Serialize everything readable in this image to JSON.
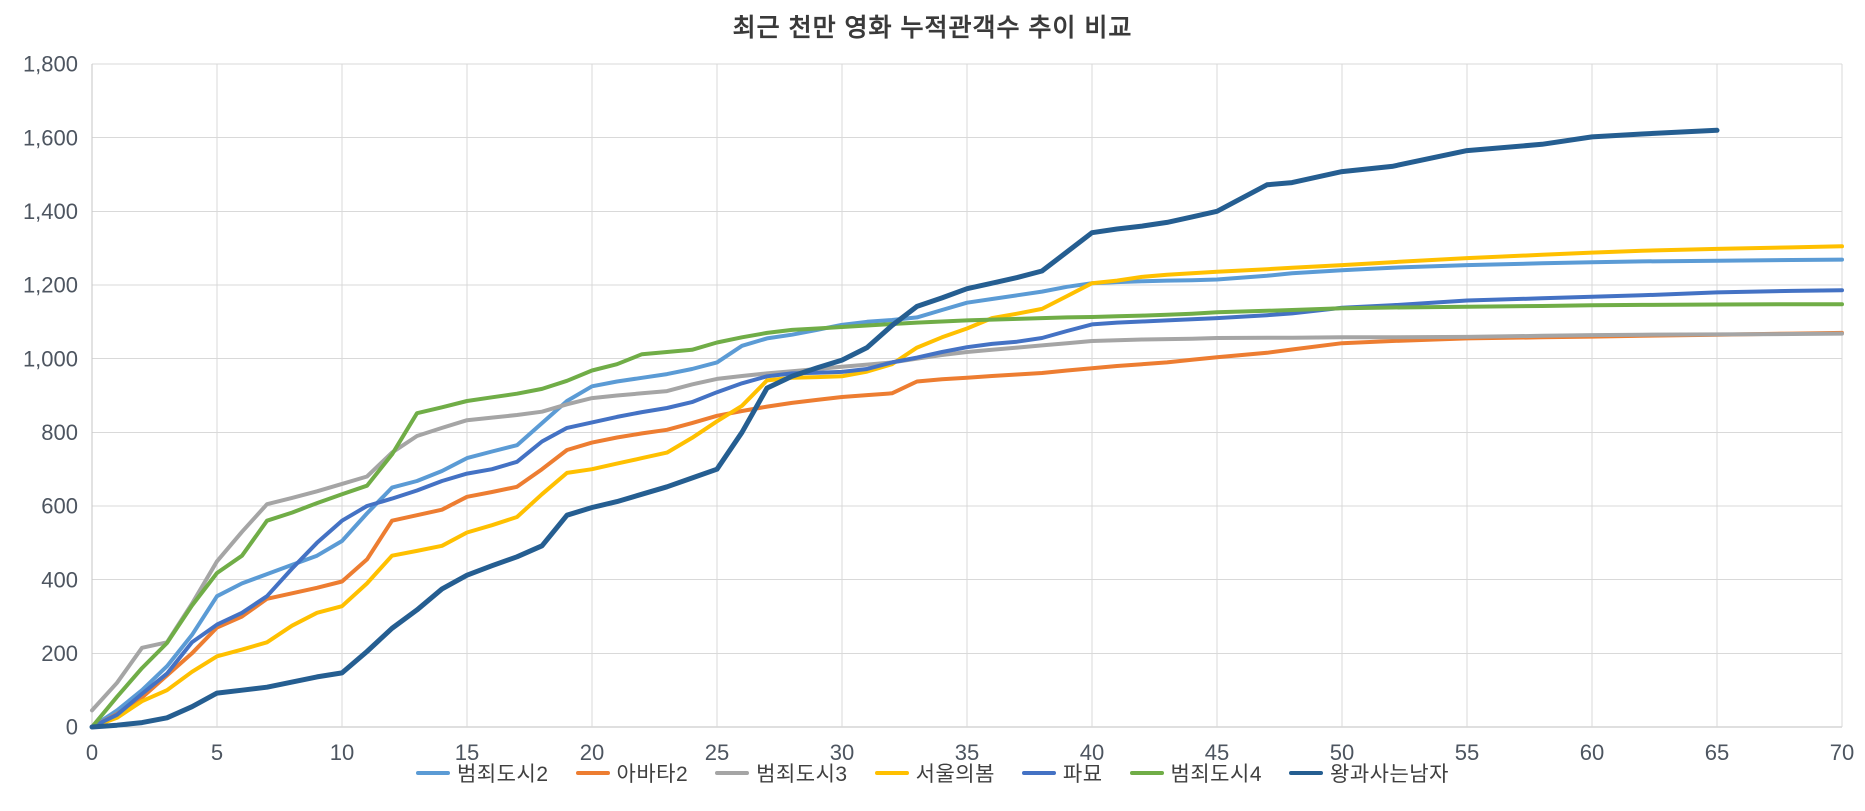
{
  "chart_data": {
    "type": "line",
    "title": "최근 천만 영화 누적관객수 추이 비교",
    "xlabel": "",
    "ylabel": "",
    "xlim": [
      0,
      70
    ],
    "ylim": [
      0,
      1800
    ],
    "grid": true,
    "legend_position": "bottom",
    "xticks": {
      "values": [
        0,
        5,
        10,
        15,
        20,
        25,
        30,
        35,
        40,
        45,
        50,
        55,
        60,
        65,
        70
      ],
      "labels": [
        "0",
        "5",
        "10",
        "15",
        "20",
        "25",
        "30",
        "35",
        "40",
        "45",
        "50",
        "55",
        "60",
        "65",
        "70"
      ]
    },
    "yticks": {
      "values": [
        0,
        200,
        400,
        600,
        800,
        1000,
        1200,
        1400,
        1600,
        1800
      ],
      "labels": [
        "0",
        "200",
        "400",
        "600",
        "800",
        "1,000",
        "1,200",
        "1,400",
        "1,600",
        "1,800"
      ]
    },
    "x": [
      0,
      1,
      2,
      3,
      4,
      5,
      6,
      7,
      8,
      9,
      10,
      11,
      12,
      13,
      14,
      15,
      16,
      17,
      18,
      19,
      20,
      21,
      22,
      23,
      24,
      25,
      26,
      27,
      28,
      29,
      30,
      31,
      32,
      33,
      34,
      35,
      36,
      37,
      38,
      39,
      40,
      41,
      42,
      43,
      44,
      45,
      47,
      48,
      50,
      52,
      55,
      58,
      60,
      62,
      65,
      68,
      70
    ],
    "series": [
      {
        "name": "범죄도시2",
        "color": "#5B9BD5",
        "width": 4,
        "values": [
          0,
          45,
          100,
          165,
          250,
          355,
          390,
          415,
          440,
          465,
          505,
          580,
          650,
          668,
          695,
          730,
          748,
          765,
          825,
          885,
          925,
          938,
          948,
          958,
          972,
          990,
          1035,
          1055,
          1065,
          1078,
          1092,
          1100,
          1105,
          1112,
          1132,
          1152,
          1162,
          1172,
          1182,
          1195,
          1205,
          1208,
          1210,
          1212,
          1213,
          1215,
          1225,
          1232,
          1240,
          1247,
          1254,
          1259,
          1262,
          1264,
          1266,
          1268,
          1269
        ]
      },
      {
        "name": "아바타2",
        "color": "#ED7D31",
        "width": 4,
        "values": [
          0,
          35,
          80,
          140,
          200,
          270,
          300,
          348,
          363,
          378,
          395,
          455,
          560,
          575,
          590,
          625,
          638,
          652,
          700,
          752,
          772,
          786,
          797,
          807,
          825,
          845,
          858,
          870,
          880,
          888,
          896,
          901,
          906,
          938,
          944,
          948,
          953,
          957,
          961,
          968,
          974,
          980,
          985,
          990,
          997,
          1004,
          1016,
          1025,
          1042,
          1048,
          1055,
          1058,
          1060,
          1062,
          1065,
          1068,
          1070
        ]
      },
      {
        "name": "범죄도시3",
        "color": "#A5A5A5",
        "width": 4,
        "values": [
          45,
          120,
          215,
          230,
          335,
          450,
          530,
          605,
          622,
          640,
          660,
          680,
          745,
          790,
          812,
          833,
          840,
          847,
          856,
          876,
          893,
          900,
          906,
          912,
          930,
          945,
          953,
          960,
          966,
          972,
          978,
          984,
          990,
          1000,
          1010,
          1018,
          1024,
          1030,
          1036,
          1042,
          1048,
          1050,
          1052,
          1053,
          1054,
          1056,
          1057,
          1057,
          1058,
          1058,
          1059,
          1062,
          1064,
          1065,
          1066,
          1067,
          1068
        ]
      },
      {
        "name": "서울의봄",
        "color": "#FFC000",
        "width": 4,
        "values": [
          0,
          25,
          70,
          100,
          150,
          192,
          210,
          230,
          275,
          310,
          328,
          390,
          465,
          478,
          492,
          528,
          548,
          570,
          632,
          690,
          700,
          715,
          730,
          745,
          785,
          830,
          872,
          941,
          948,
          950,
          952,
          965,
          985,
          1030,
          1058,
          1082,
          1110,
          1122,
          1135,
          1170,
          1205,
          1212,
          1222,
          1228,
          1232,
          1236,
          1243,
          1247,
          1254,
          1262,
          1273,
          1282,
          1288,
          1293,
          1298,
          1302,
          1305
        ]
      },
      {
        "name": "파묘",
        "color": "#4472C4",
        "width": 4,
        "values": [
          0,
          33,
          90,
          145,
          230,
          278,
          310,
          355,
          430,
          500,
          560,
          600,
          620,
          642,
          668,
          688,
          700,
          720,
          775,
          812,
          827,
          842,
          855,
          866,
          882,
          909,
          933,
          952,
          960,
          962,
          964,
          972,
          990,
          1003,
          1018,
          1031,
          1040,
          1046,
          1056,
          1075,
          1093,
          1098,
          1101,
          1104,
          1107,
          1110,
          1118,
          1123,
          1138,
          1145,
          1158,
          1164,
          1168,
          1172,
          1180,
          1184,
          1186
        ]
      },
      {
        "name": "범죄도시4",
        "color": "#70AD47",
        "width": 4,
        "values": [
          0,
          82,
          160,
          228,
          330,
          418,
          465,
          560,
          582,
          608,
          632,
          655,
          740,
          852,
          868,
          885,
          895,
          905,
          918,
          940,
          968,
          985,
          1012,
          1018,
          1024,
          1044,
          1058,
          1070,
          1078,
          1082,
          1086,
          1090,
          1094,
          1098,
          1101,
          1104,
          1106,
          1108,
          1110,
          1112,
          1113,
          1115,
          1117,
          1119,
          1122,
          1126,
          1130,
          1132,
          1137,
          1139,
          1141,
          1143,
          1145,
          1146,
          1147,
          1148,
          1148
        ]
      },
      {
        "name": "왕과사는남자",
        "color": "#255E91",
        "width": 5,
        "values": [
          0,
          5,
          12,
          25,
          55,
          92,
          100,
          108,
          122,
          136,
          147,
          205,
          268,
          318,
          375,
          412,
          438,
          462,
          492,
          575,
          596,
          612,
          632,
          652,
          676,
          700,
          800,
          920,
          952,
          975,
          996,
          1030,
          1090,
          1142,
          1165,
          1190,
          1205,
          1220,
          1238,
          1290,
          1342,
          1352,
          1360,
          1370,
          1385,
          1400,
          1472,
          1478,
          1508,
          1522,
          1565,
          1582,
          1602,
          1610,
          1620,
          null,
          null
        ]
      }
    ]
  }
}
